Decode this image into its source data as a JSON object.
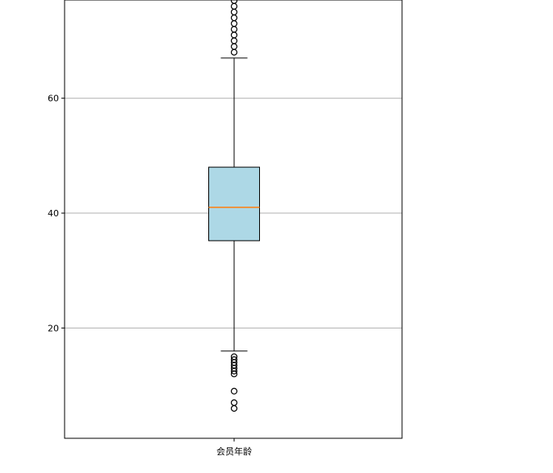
{
  "chart_data": {
    "type": "boxplot",
    "title": "",
    "xlabel": "",
    "ylabel": "",
    "categories": [
      "会员年龄"
    ],
    "ylim": [
      0.8,
      77.1
    ],
    "yticks": [
      20,
      40,
      60
    ],
    "grid": "y",
    "box": {
      "q1": 35.2,
      "median": 41,
      "q3": 48,
      "whisker_low": 16,
      "whisker_high": 67
    },
    "outliers": [
      6,
      7,
      9,
      12,
      12.5,
      13,
      13.5,
      14,
      14.5,
      15,
      68,
      69,
      70,
      71,
      72,
      73,
      74,
      75,
      76,
      77
    ],
    "colors": {
      "box_fill": "#add8e6",
      "median": "#ff7f0e",
      "grid": "#b0b0b0"
    }
  }
}
